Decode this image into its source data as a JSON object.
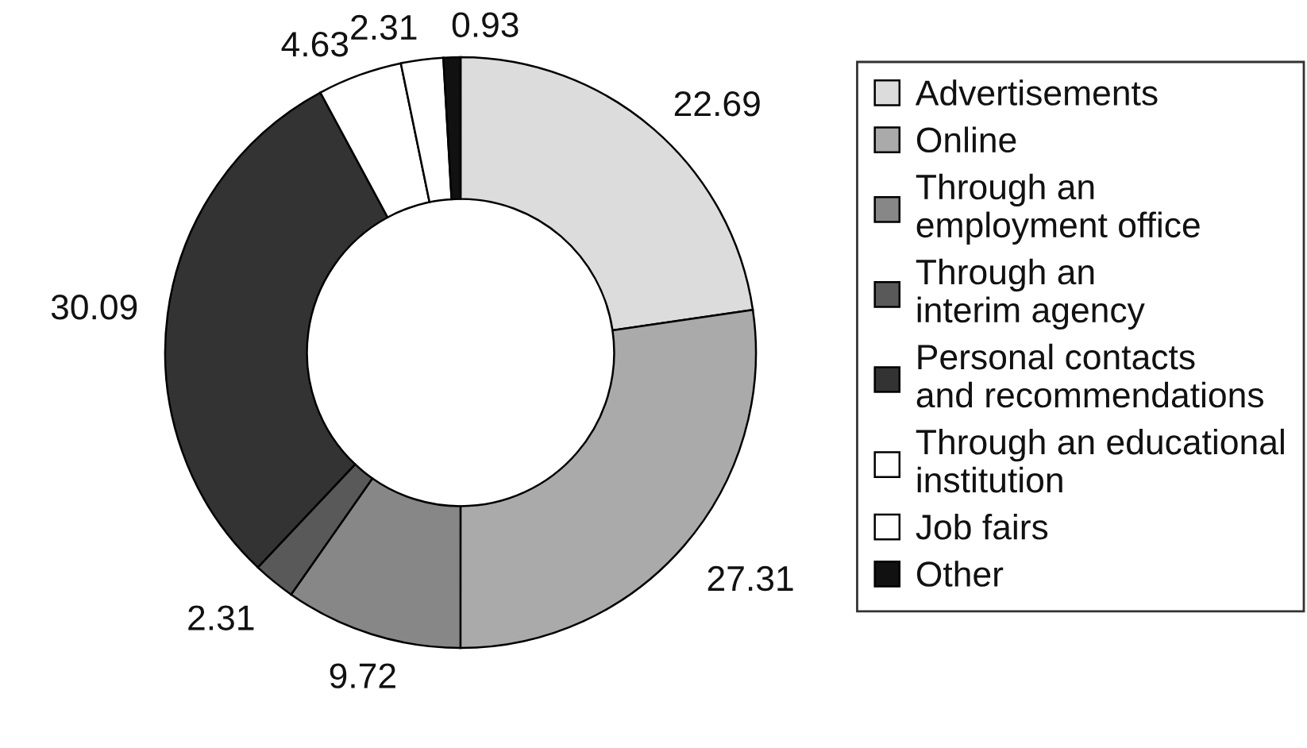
{
  "chart_data": {
    "type": "donut",
    "categories": [
      "Advertisements",
      "Online",
      "Through an\nemployment office",
      "Through an\ninterim agency",
      "Personal contacts\nand recommendations",
      "Through an educational\ninstitution",
      "Job fairs",
      "Other"
    ],
    "values": [
      22.69,
      27.31,
      9.72,
      2.31,
      30.09,
      4.63,
      2.31,
      0.93
    ],
    "colors": [
      "#dcdcdc",
      "#aaaaaa",
      "#878787",
      "#595959",
      "#333333",
      "#ffffff",
      "#ffffff",
      "#111111"
    ],
    "data_labels": true,
    "legend": "right"
  }
}
